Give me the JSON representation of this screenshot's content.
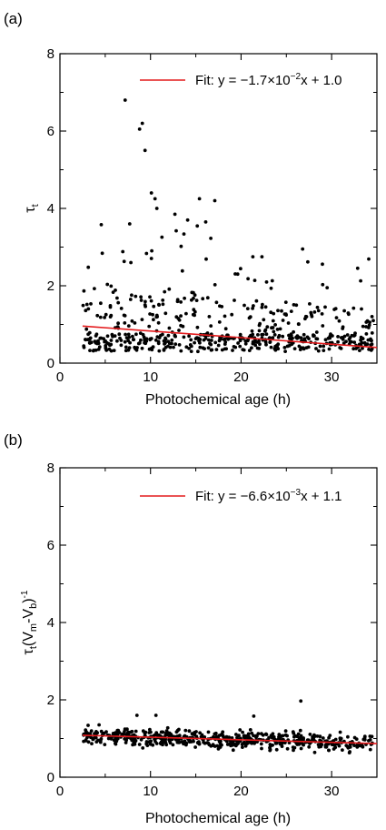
{
  "chart_data": [
    {
      "panel_label": "(a)",
      "type": "scatter",
      "xlabel": "Photochemical age (h)",
      "ylabel": "τ",
      "ylabel_sub": "t",
      "xlim": [
        0,
        35
      ],
      "ylim": [
        0,
        8
      ],
      "x_ticks": [
        0,
        10,
        20,
        30
      ],
      "y_ticks": [
        0,
        2,
        4,
        6,
        8
      ],
      "grid": false,
      "legend_position": "top-right",
      "fit": {
        "label_prefix": "Fit: y = −1.7×10",
        "label_exp": "−2",
        "label_suffix": "x + 1.0",
        "slope": -0.017,
        "intercept": 1.0,
        "x_range": [
          2.5,
          35
        ],
        "color": "#e41a1c"
      },
      "point_color": "#000000",
      "point_spread": "wide",
      "outliers": [
        [
          7.2,
          6.8
        ],
        [
          8.8,
          6.05
        ],
        [
          9.1,
          6.2
        ],
        [
          9.4,
          5.5
        ],
        [
          10.1,
          4.4
        ],
        [
          10.5,
          4.25
        ],
        [
          15.4,
          4.25
        ],
        [
          17.1,
          4.2
        ],
        [
          10.7,
          4.0
        ],
        [
          12.7,
          3.85
        ],
        [
          14.1,
          3.7
        ],
        [
          16.1,
          3.65
        ],
        [
          7.7,
          3.6
        ],
        [
          26.8,
          2.95
        ],
        [
          21.3,
          2.75
        ],
        [
          22.3,
          2.75
        ],
        [
          29.5,
          1.95
        ],
        [
          33.3,
          1.4
        ],
        [
          34.6,
          1.1
        ]
      ],
      "n_points": 560
    },
    {
      "panel_label": "(b)",
      "type": "scatter",
      "xlabel": "Photochemical age (h)",
      "ylabel": "τ",
      "ylabel_sub": "t",
      "ylabel_rest": "(V",
      "ylabel_sub2": "m",
      "ylabel_mid": "-V",
      "ylabel_sub3": "b",
      "ylabel_end": ")",
      "ylabel_sup": "-1",
      "xlim": [
        0,
        35
      ],
      "ylim": [
        0,
        8
      ],
      "x_ticks": [
        0,
        10,
        20,
        30
      ],
      "y_ticks": [
        0,
        2,
        4,
        6,
        8
      ],
      "grid": false,
      "legend_position": "top-right",
      "fit": {
        "label_prefix": "Fit: y = −6.6×10",
        "label_exp": "−3",
        "label_suffix": "x + 1.1",
        "slope": -0.0066,
        "intercept": 1.1,
        "x_range": [
          2.5,
          35
        ],
        "color": "#e41a1c"
      },
      "point_color": "#000000",
      "point_spread": "narrow",
      "outliers": [
        [
          26.6,
          1.97
        ],
        [
          21.4,
          1.58
        ],
        [
          10.6,
          1.6
        ],
        [
          8.5,
          1.6
        ]
      ],
      "n_points": 560
    }
  ]
}
